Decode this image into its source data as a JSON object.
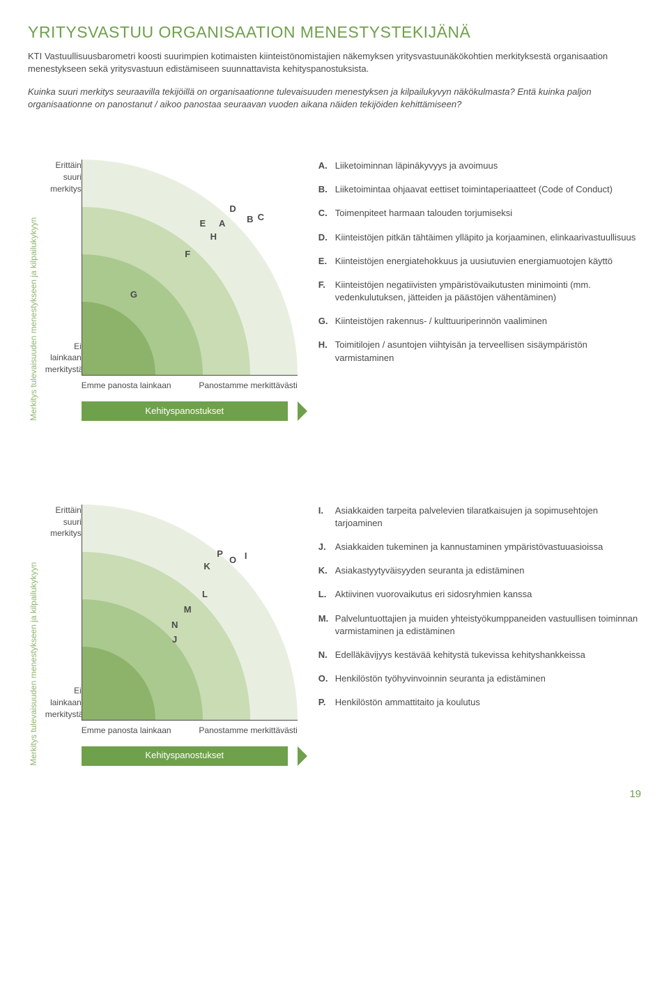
{
  "title": "YRITYSVASTUU ORGANISAATION MENESTYSTEKIJÄNÄ",
  "intro": "KTI Vastuullisuusbarometri koosti suurimpien kotimaisten kiinteistönomistajien näkemyksen yritysvastuunäkökohtien merkityksestä organisaation menestykseen sekä yritysvastuun edistämiseen suunnattavista kehityspanostuksista.",
  "questions": "Kuinka suuri merkitys seuraavilla tekijöillä on organisaationne tulevaisuuden menestyksen ja kilpailukyvyn näkökulmasta? Entä kuinka paljon organisaationne on panostanut / aikoo panostaa seuraavan vuoden aikana näiden tekijöiden kehittämiseen?",
  "axes": {
    "y_label": "Merkitys tulevaisuuden menestykseen ja kilpailukykyyn",
    "y_top": "Erittäin suuri merkitys",
    "y_bottom": "Ei lainkaan merkitystä",
    "x_left": "Emme panosta lainkaan",
    "x_right": "Panostamme merkittävästi",
    "x_title": "Kehityspanostukset"
  },
  "arcs": {
    "colors": [
      "#e8efe0",
      "#c9dcb4",
      "#a9c98e",
      "#8db36a"
    ],
    "radii_pct": [
      100,
      78,
      56,
      34
    ]
  },
  "chart1": {
    "points": [
      {
        "l": "A",
        "x": 65,
        "y": 70
      },
      {
        "l": "B",
        "x": 78,
        "y": 72
      },
      {
        "l": "C",
        "x": 83,
        "y": 73
      },
      {
        "l": "D",
        "x": 70,
        "y": 77
      },
      {
        "l": "E",
        "x": 56,
        "y": 70
      },
      {
        "l": "F",
        "x": 49,
        "y": 56
      },
      {
        "l": "G",
        "x": 24,
        "y": 37
      },
      {
        "l": "H",
        "x": 61,
        "y": 64
      }
    ],
    "legend": [
      {
        "l": "A.",
        "t": "Liiketoiminnan läpinäkyvyys ja avoimuus"
      },
      {
        "l": "B.",
        "t": "Liiketoimintaa ohjaavat eettiset toimintaperiaatteet (Code of Conduct)"
      },
      {
        "l": "C.",
        "t": "Toimenpiteet harmaan talouden torjumiseksi"
      },
      {
        "l": "D.",
        "t": "Kiinteistöjen pitkän tähtäimen ylläpito ja korjaaminen, elinkaarivastuullisuus"
      },
      {
        "l": "E.",
        "t": "Kiinteistöjen energiatehokkuus ja uusiutuvien energiamuotojen käyttö"
      },
      {
        "l": "F.",
        "t": "Kiinteistöjen negatiivisten ympäristövaikutusten minimointi (mm. vedenkulutuksen, jätteiden ja päästöjen vähentäminen)"
      },
      {
        "l": "G.",
        "t": "Kiinteistöjen rakennus- / kulttuuriperinnön vaaliminen"
      },
      {
        "l": "H.",
        "t": "Toimitilojen / asuntojen viihtyisän ja terveellisen sisäympäristön varmistaminen"
      }
    ]
  },
  "chart2": {
    "points": [
      {
        "l": "I",
        "x": 76,
        "y": 76
      },
      {
        "l": "J",
        "x": 43,
        "y": 37
      },
      {
        "l": "K",
        "x": 58,
        "y": 71
      },
      {
        "l": "L",
        "x": 57,
        "y": 58
      },
      {
        "l": "M",
        "x": 49,
        "y": 51
      },
      {
        "l": "N",
        "x": 43,
        "y": 44
      },
      {
        "l": "O",
        "x": 70,
        "y": 74
      },
      {
        "l": "P",
        "x": 64,
        "y": 77
      }
    ],
    "legend": [
      {
        "l": "I.",
        "t": "Asiakkaiden tarpeita palvelevien tilaratkaisujen ja sopimusehtojen tarjoaminen"
      },
      {
        "l": "J.",
        "t": "Asiakkaiden tukeminen ja kannustaminen ympäristövastuuasioissa"
      },
      {
        "l": "K.",
        "t": "Asiakastyytyväisyyden seuranta ja edistäminen"
      },
      {
        "l": "L.",
        "t": "Aktiivinen vuorovaikutus eri sidosryhmien kanssa"
      },
      {
        "l": "M.",
        "t": "Palveluntuottajien ja muiden yhteistyökumppaneiden vastuullisen toiminnan varmistaminen ja edistäminen"
      },
      {
        "l": "N.",
        "t": "Edelläkävijyys kestävää kehitystä tukevissa kehityshankkeissa"
      },
      {
        "l": "O.",
        "t": "Henkilöstön työhyvinvoinnin seuranta ja edistäminen"
      },
      {
        "l": "P.",
        "t": "Henkilöstön ammattitaito ja koulutus"
      }
    ]
  },
  "page_number": "19"
}
